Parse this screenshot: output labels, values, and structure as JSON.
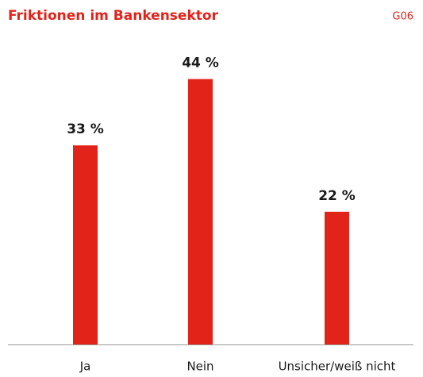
{
  "chart_data": {
    "type": "bar",
    "title": "Friktionen im Bankensektor",
    "subtitle": "G06",
    "categories": [
      "Ja",
      "Nein",
      "Unsicher/weiß nicht"
    ],
    "values": [
      33,
      44,
      22
    ],
    "value_labels": [
      "33 %",
      "44 %",
      "22 %"
    ],
    "color": "#e2231a"
  }
}
